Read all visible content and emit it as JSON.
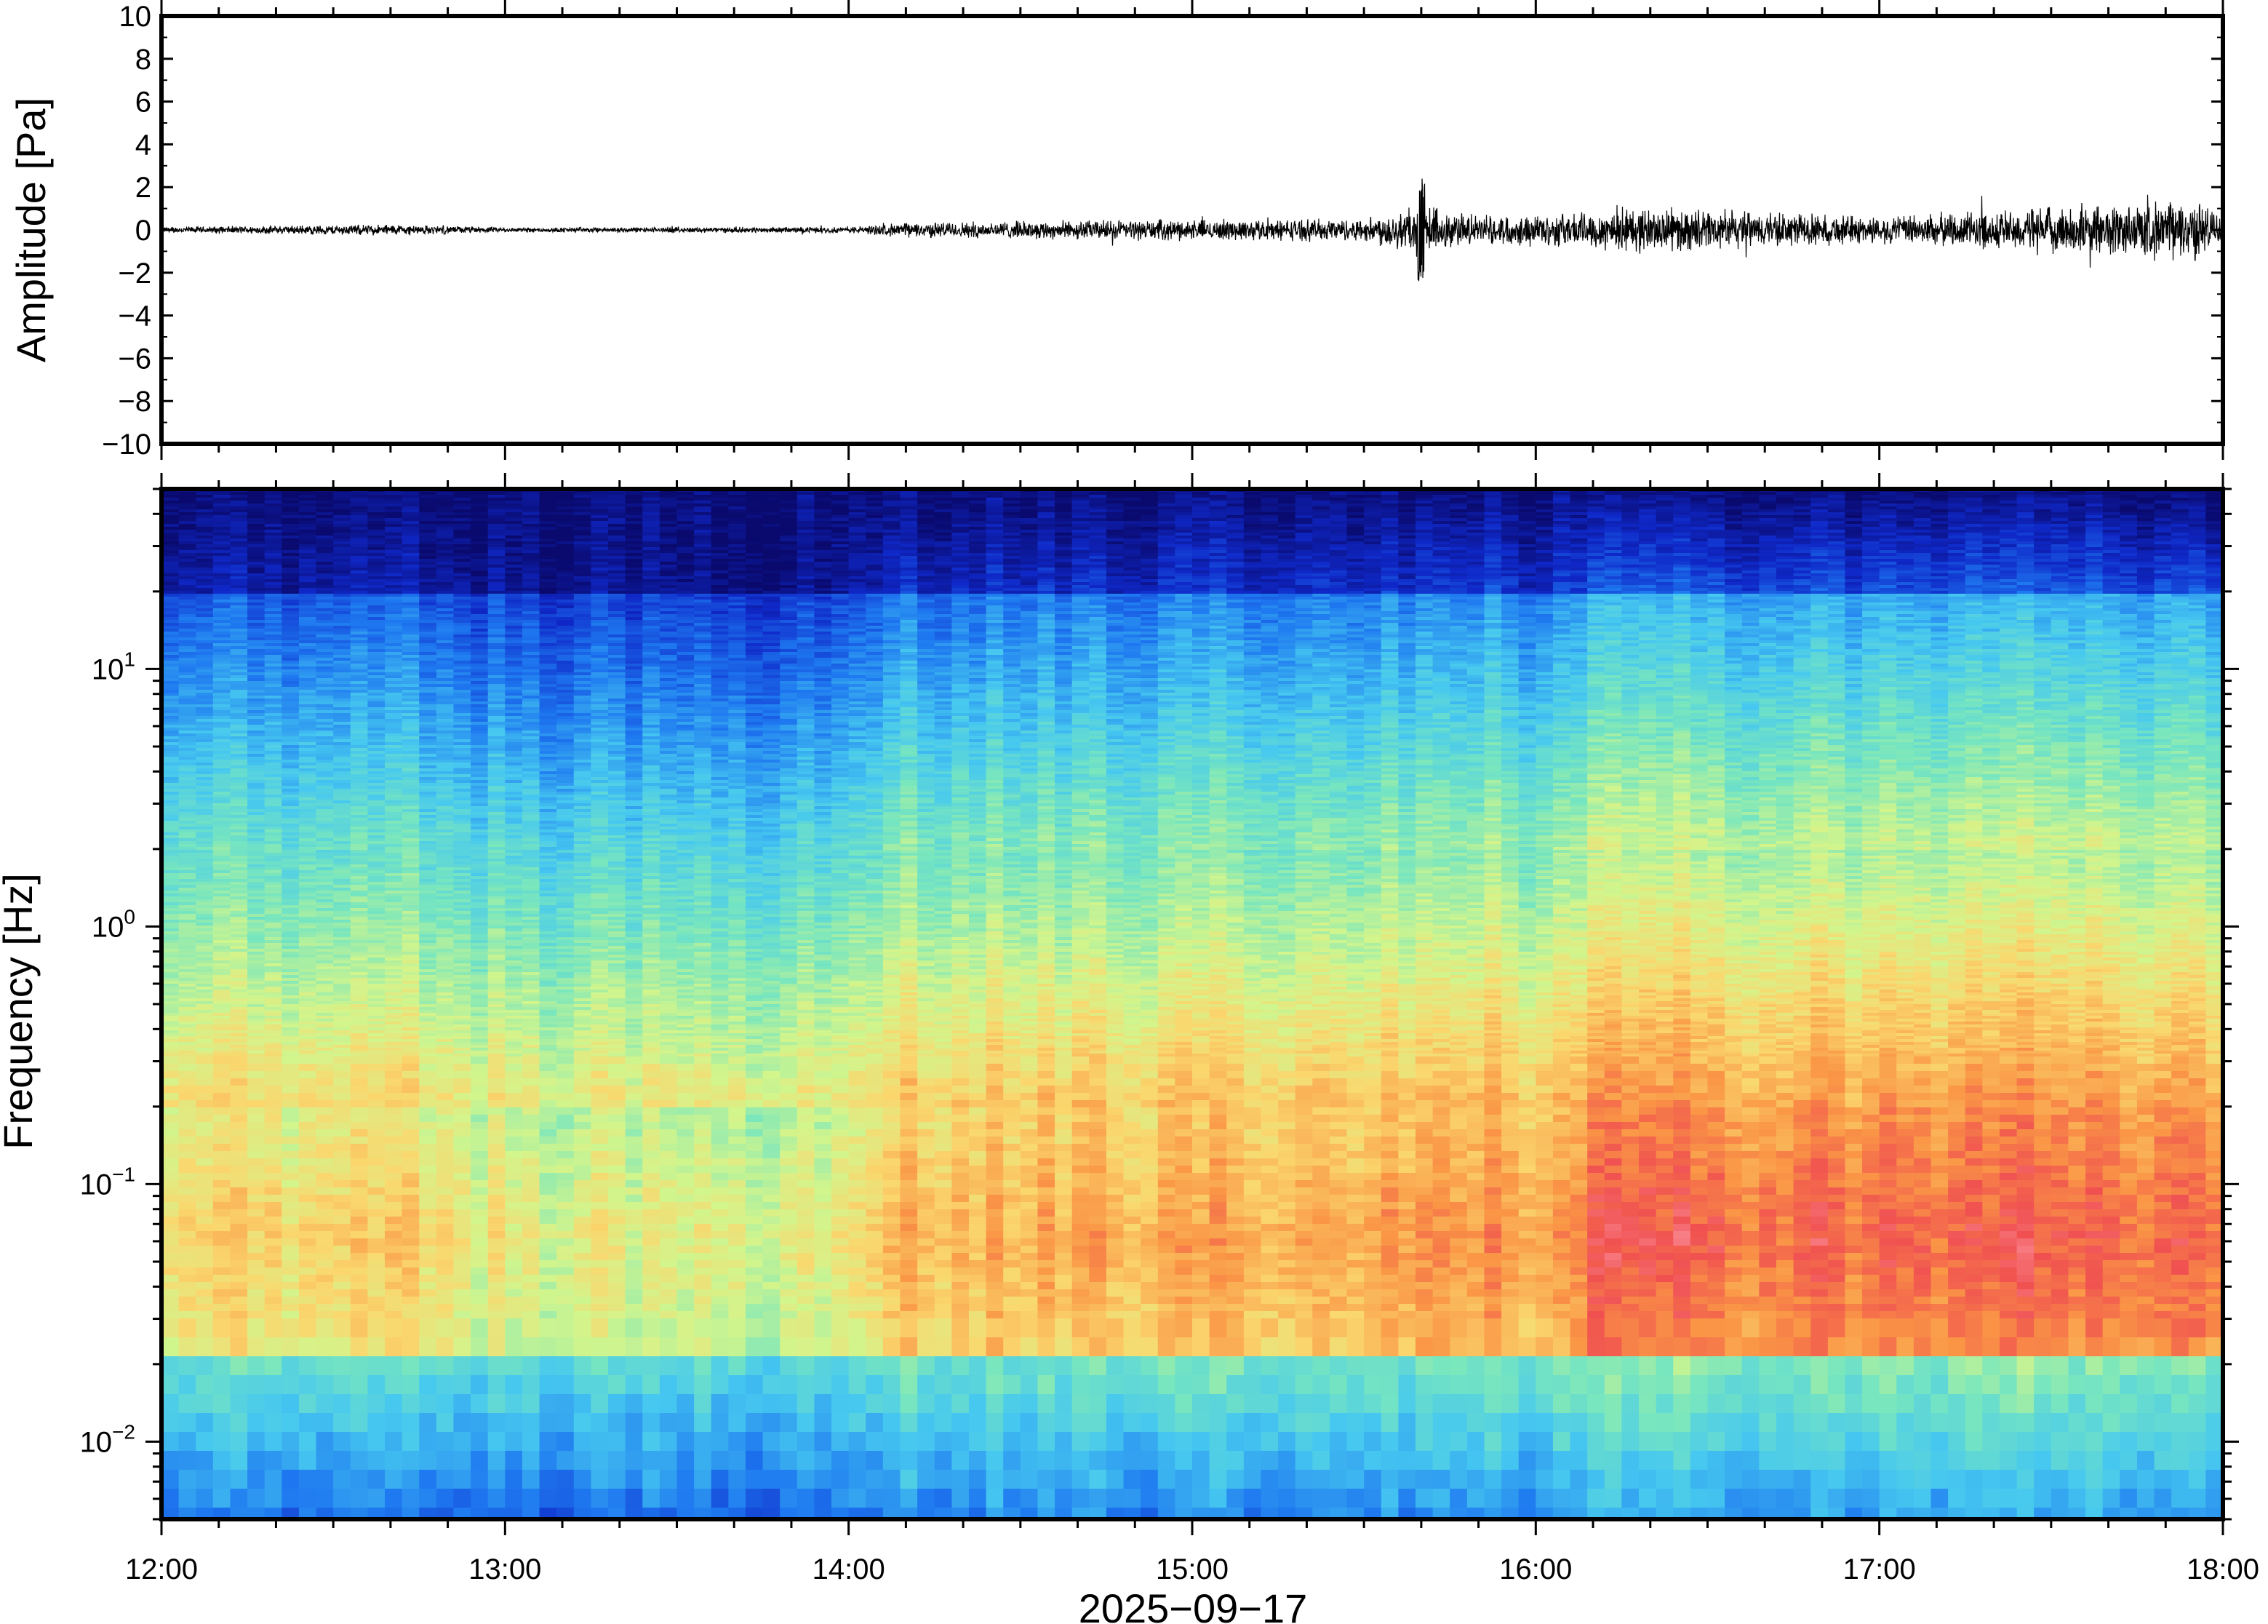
{
  "chart_data": [
    {
      "type": "line",
      "panel": "waveform",
      "ylabel": "Amplitude [Pa]",
      "ylim": [
        -10,
        10
      ],
      "yticks": [
        10,
        8,
        6,
        4,
        2,
        0,
        -2,
        -4,
        -6,
        -8,
        -10
      ],
      "ytick_labels": [
        "10",
        "8",
        "6",
        "4",
        "2",
        "0",
        "−2",
        "−4",
        "−6",
        "−8",
        "−10"
      ],
      "xlim": [
        "12:00",
        "18:00"
      ],
      "series": [
        {
          "values_hint": "noisy trace around 0",
          "envelope": [
            {
              "t": "12:00",
              "amp": 0.25
            },
            {
              "t": "12:40",
              "amp": 0.45
            },
            {
              "t": "13:00",
              "amp": 0.2
            },
            {
              "t": "14:00",
              "amp": 0.25
            },
            {
              "t": "14:10",
              "amp": 0.6
            },
            {
              "t": "14:45",
              "amp": 0.8
            },
            {
              "t": "15:30",
              "amp": 0.9
            },
            {
              "t": "15:40",
              "amp": 2.3
            },
            {
              "t": "15:50",
              "amp": 1.1
            },
            {
              "t": "16:10",
              "amp": 1.5
            },
            {
              "t": "16:15",
              "amp": 1.9
            },
            {
              "t": "17:00",
              "amp": 1.1
            },
            {
              "t": "17:55",
              "amp": 2.5
            },
            {
              "t": "18:00",
              "amp": 1.3
            }
          ]
        }
      ]
    },
    {
      "type": "heatmap",
      "panel": "spectrogram",
      "ylabel": "Frequency [Hz]",
      "yscale": "log",
      "ylim": [
        0.005,
        50
      ],
      "yticks": [
        10,
        1,
        0.1,
        0.01
      ],
      "ytick_labels": [
        {
          "base": "10",
          "exp": "1"
        },
        {
          "base": "10",
          "exp": "0"
        },
        {
          "base": "10",
          "exp": "−1"
        },
        {
          "base": "10",
          "exp": "−2"
        }
      ],
      "xlabel": "2025−09−17",
      "xlim": [
        "12:00",
        "18:00"
      ],
      "xtick_labels": [
        "12:00",
        "13:00",
        "14:00",
        "15:00",
        "16:00",
        "17:00",
        "18:00"
      ],
      "colormap": "rainbow (navy → blue → cyan → yellow → orange → red)",
      "grid": false
    }
  ]
}
